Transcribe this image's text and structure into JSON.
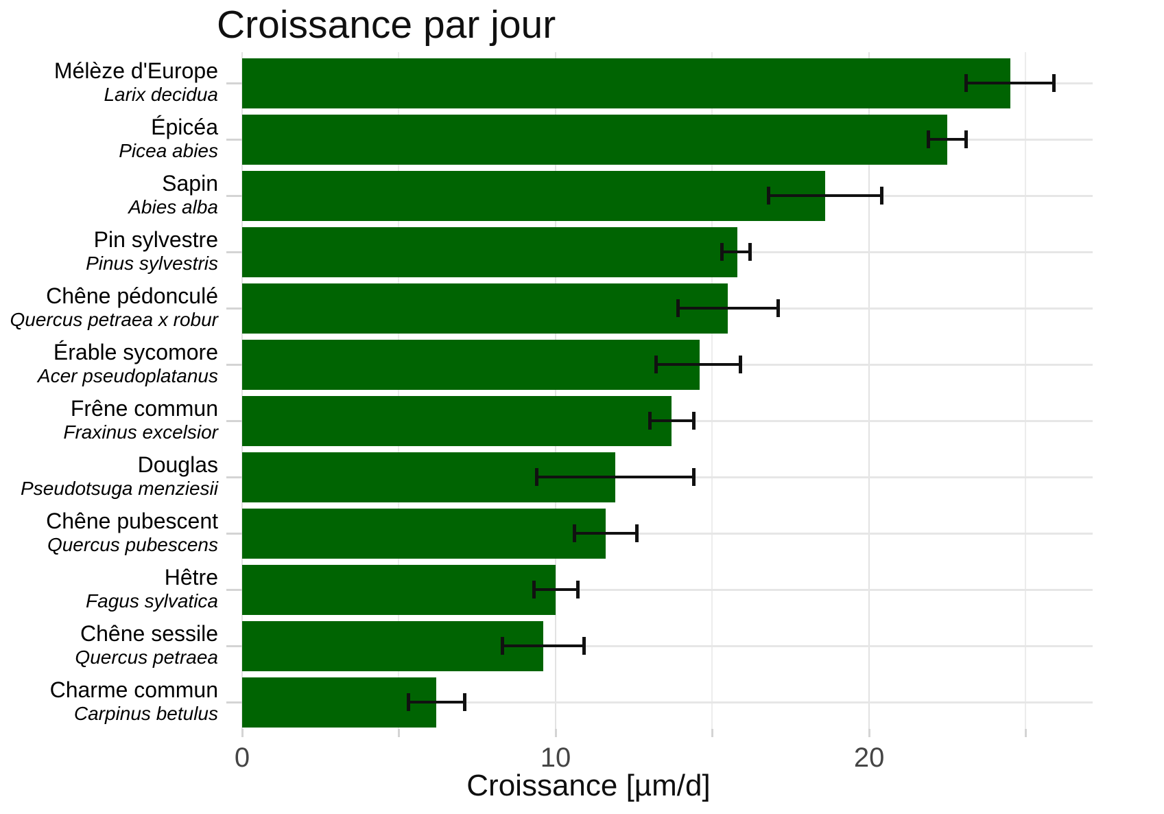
{
  "figure": {
    "title": "Croissance par jour",
    "x_axis_title": "Croissance [µm/d]"
  },
  "chart_data": {
    "type": "bar",
    "orientation": "horizontal",
    "title": "Croissance par jour",
    "xlabel": "Croissance [µm/d]",
    "ylabel": "",
    "xlim": [
      0,
      27.13
    ],
    "xticks_labeled": [
      "0",
      "10",
      "20"
    ],
    "xticks_labeled_values": [
      0,
      10,
      20
    ],
    "xticks_all_values": [
      0,
      5,
      10,
      15,
      20,
      25
    ],
    "grid": "on",
    "legend": "none",
    "bar_color": "#006402",
    "errorbar_color": "#111111",
    "gridline_color": "#e6e6e6",
    "tick_color": "#d4d4d4",
    "tick_label_color": "#454545",
    "categories": [
      "Mélèze d'Europe",
      "Épicéa",
      "Sapin",
      "Pin sylvestre",
      "Chêne pédonculé",
      "Érable sycomore",
      "Frêne commun",
      "Douglas",
      "Chêne pubescent",
      "Hêtre",
      "Chêne sessile",
      "Charme commun"
    ],
    "series": [
      {
        "name": "Croissance [µm/d]",
        "values": [
          24.5,
          22.5,
          18.6,
          15.8,
          15.5,
          14.6,
          13.7,
          11.9,
          11.6,
          10.0,
          9.6,
          6.2
        ],
        "error_low": [
          23.1,
          21.9,
          16.8,
          15.3,
          13.9,
          13.2,
          13.0,
          9.4,
          10.6,
          9.3,
          8.3,
          5.3
        ],
        "error_high": [
          25.9,
          23.1,
          20.4,
          16.2,
          17.1,
          15.9,
          14.4,
          14.4,
          12.6,
          10.7,
          10.9,
          7.1
        ]
      }
    ],
    "rows": [
      {
        "name": "Mélèze d'Europe",
        "latin": "Larix decidua",
        "value": 24.5,
        "err_low": 23.1,
        "err_high": 25.9
      },
      {
        "name": "Épicéa",
        "latin": "Picea abies",
        "value": 22.5,
        "err_low": 21.9,
        "err_high": 23.1
      },
      {
        "name": "Sapin",
        "latin": "Abies alba",
        "value": 18.6,
        "err_low": 16.8,
        "err_high": 20.4
      },
      {
        "name": "Pin sylvestre",
        "latin": "Pinus sylvestris",
        "value": 15.8,
        "err_low": 15.3,
        "err_high": 16.2
      },
      {
        "name": "Chêne pédonculé",
        "latin": "Quercus petraea x robur",
        "value": 15.5,
        "err_low": 13.9,
        "err_high": 17.1
      },
      {
        "name": "Érable sycomore",
        "latin": "Acer pseudoplatanus",
        "value": 14.6,
        "err_low": 13.2,
        "err_high": 15.9
      },
      {
        "name": "Frêne commun",
        "latin": "Fraxinus excelsior",
        "value": 13.7,
        "err_low": 13.0,
        "err_high": 14.4
      },
      {
        "name": "Douglas",
        "latin": "Pseudotsuga menziesii",
        "value": 11.9,
        "err_low": 9.4,
        "err_high": 14.4
      },
      {
        "name": "Chêne pubescent",
        "latin": "Quercus pubescens",
        "value": 11.6,
        "err_low": 10.6,
        "err_high": 12.6
      },
      {
        "name": "Hêtre",
        "latin": "Fagus sylvatica",
        "value": 10.0,
        "err_low": 9.3,
        "err_high": 10.7
      },
      {
        "name": "Chêne sessile",
        "latin": "Quercus petraea",
        "value": 9.6,
        "err_low": 8.3,
        "err_high": 10.9
      },
      {
        "name": "Charme commun",
        "latin": "Carpinus betulus",
        "value": 6.2,
        "err_low": 5.3,
        "err_high": 7.1
      }
    ]
  }
}
